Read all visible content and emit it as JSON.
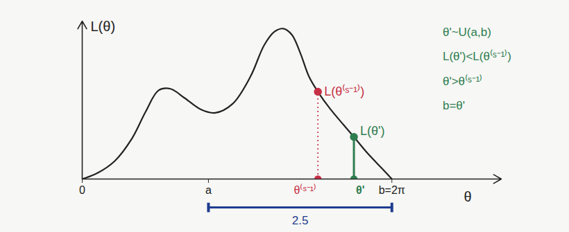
{
  "chart_data": {
    "type": "line",
    "xlabel": "θ",
    "ylabel": "L(θ)",
    "color": "#222222",
    "x": [
      0,
      0.31,
      0.66,
      1.01,
      1.29,
      1.55,
      1.79,
      2.07,
      2.42,
      2.7,
      3.05,
      3.41,
      3.69,
      3.9,
      4.08,
      4.25,
      4.42,
      4.6,
      4.78,
      5.02,
      5.3,
      5.51,
      5.79,
      6.08,
      6.28
    ],
    "values": [
      0,
      0.04,
      0.12,
      0.27,
      0.45,
      0.59,
      0.6,
      0.54,
      0.46,
      0.44,
      0.5,
      0.68,
      0.89,
      0.98,
      1.0,
      0.96,
      0.84,
      0.68,
      0.58,
      0.47,
      0.36,
      0.28,
      0.17,
      0.07,
      0
    ],
    "xlim": [
      0,
      8.5
    ],
    "ylim": [
      0,
      1.05
    ],
    "xticks": [
      0,
      {
        "value": 2.56,
        "label": "a"
      },
      {
        "value": 6.28,
        "label": "b=2π"
      }
    ],
    "tick_labels": "x",
    "points": [
      {
        "name": "θ⁽ˢ⁻¹⁾",
        "label": "L(θ⁽ˢ⁻¹⁾)",
        "x": 4.78,
        "y": 0.58,
        "color": "#c62f45",
        "line_style": "dotted"
      },
      {
        "name": "θ'",
        "label": "L(θ')",
        "x": 5.51,
        "y": 0.28,
        "color": "#2e7d4f",
        "line_style": "solid"
      }
    ],
    "interval": {
      "label": "2.5",
      "from": 2.56,
      "to": 6.28,
      "color": "#1f3c8f"
    },
    "notes": {
      "color": "#2e7d4f",
      "lines": [
        "θ'~U(a,b)",
        "L(θ')<L(θ⁽ˢ⁻¹⁾)",
        "θ'>θ⁽ˢ⁻¹⁾",
        "b=θ'"
      ]
    }
  }
}
